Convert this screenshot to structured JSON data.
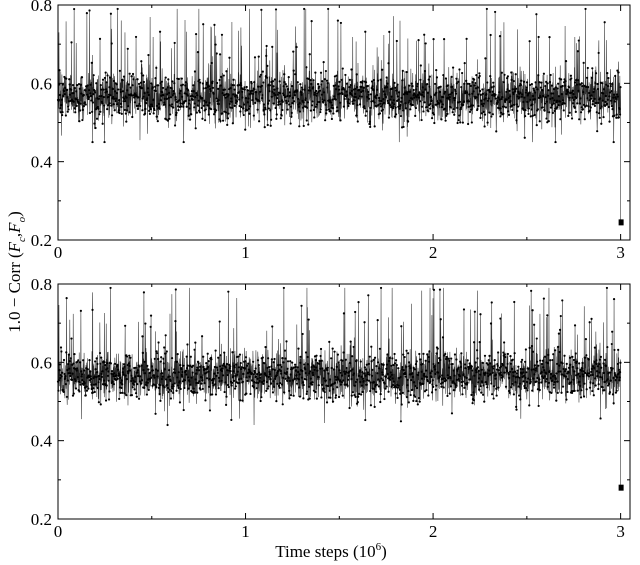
{
  "chart_data": [
    {
      "type": "line",
      "panel": "top",
      "xlim": [
        0,
        3.05
      ],
      "ylim": [
        0.2,
        0.8
      ],
      "x_ticks": [
        0,
        1,
        2,
        3
      ],
      "x_tick_labels": [
        "0",
        "1",
        "2",
        "3"
      ],
      "y_ticks": [
        0.2,
        0.4,
        0.6,
        0.8
      ],
      "y_tick_labels": [
        "0.2",
        "0.4",
        "0.6",
        "0.8"
      ],
      "grid": false,
      "legend": "none",
      "series": [
        {
          "marker": "dot",
          "color": "#000000",
          "x_range": [
            0,
            3.0
          ],
          "n_points": 3000,
          "approx_level": 0.565,
          "approx_band": [
            0.48,
            0.66
          ],
          "approx_max": 0.79,
          "approx_min": 0.45,
          "final_drop": {
            "x": 3.0,
            "y": 0.245
          }
        }
      ]
    },
    {
      "type": "line",
      "panel": "bottom",
      "xlim": [
        0,
        3.05
      ],
      "ylim": [
        0.2,
        0.8
      ],
      "x_ticks": [
        0,
        1,
        2,
        3
      ],
      "x_tick_labels": [
        "0",
        "1",
        "2",
        "3"
      ],
      "y_ticks": [
        0.2,
        0.4,
        0.6,
        0.8
      ],
      "y_tick_labels": [
        "0.2",
        "0.4",
        "0.6",
        "0.8"
      ],
      "grid": false,
      "legend": "none",
      "series": [
        {
          "marker": "dot",
          "color": "#000000",
          "x_range": [
            0,
            3.0
          ],
          "n_points": 3000,
          "approx_level": 0.565,
          "approx_band": [
            0.49,
            0.66
          ],
          "approx_max": 0.79,
          "approx_min": 0.44,
          "final_drop": {
            "x": 3.0,
            "y": 0.28
          }
        }
      ]
    }
  ],
  "shared_xlabel_main": "Time steps (10",
  "shared_xlabel_sup": "6",
  "shared_xlabel_end": ")",
  "shared_ylabel_pre": "1.0 − Corr (",
  "shared_ylabel_F1": "F",
  "shared_ylabel_sub1": "c",
  "shared_ylabel_comma": ",",
  "shared_ylabel_F2": "F",
  "shared_ylabel_sub2": "o",
  "shared_ylabel_post": ")"
}
